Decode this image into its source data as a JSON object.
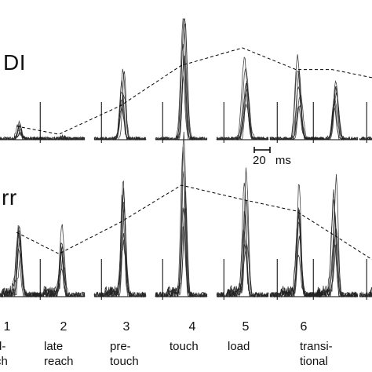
{
  "chart_data": {
    "type": "line",
    "title": "",
    "rows": [
      {
        "label": "DI",
        "epoch_means": [
          0.1,
          0.04,
          0.25,
          0.55,
          0.68,
          0.52,
          0.52,
          0.44
        ],
        "panel_peaks": [
          0.12,
          0.02,
          0.55,
          1.0,
          0.6,
          0.55,
          0.5,
          0.1
        ]
      },
      {
        "label": "rr",
        "epoch_means": [
          0.45,
          0.3,
          0.52,
          0.78,
          0.68,
          0.6,
          0.44,
          0.2
        ],
        "panel_peaks": [
          0.55,
          0.45,
          0.85,
          1.0,
          0.8,
          0.75,
          0.8,
          0.3
        ]
      }
    ],
    "epochs": [
      {
        "number": "1",
        "name": "d-\nch"
      },
      {
        "number": "2",
        "name": "late\nreach"
      },
      {
        "number": "3",
        "name": "pre-\ntouch"
      },
      {
        "number": "4",
        "name": "touch"
      },
      {
        "number": "5",
        "name": "load"
      },
      {
        "number": "6",
        "name": "transi-\ntional"
      },
      {
        "number": "",
        "name": ""
      },
      {
        "number": "",
        "name": ""
      }
    ],
    "scale_bar": {
      "value": "20",
      "unit": "ms"
    },
    "xlabel": "",
    "ylabel": "",
    "grid": false,
    "legend": "none"
  }
}
